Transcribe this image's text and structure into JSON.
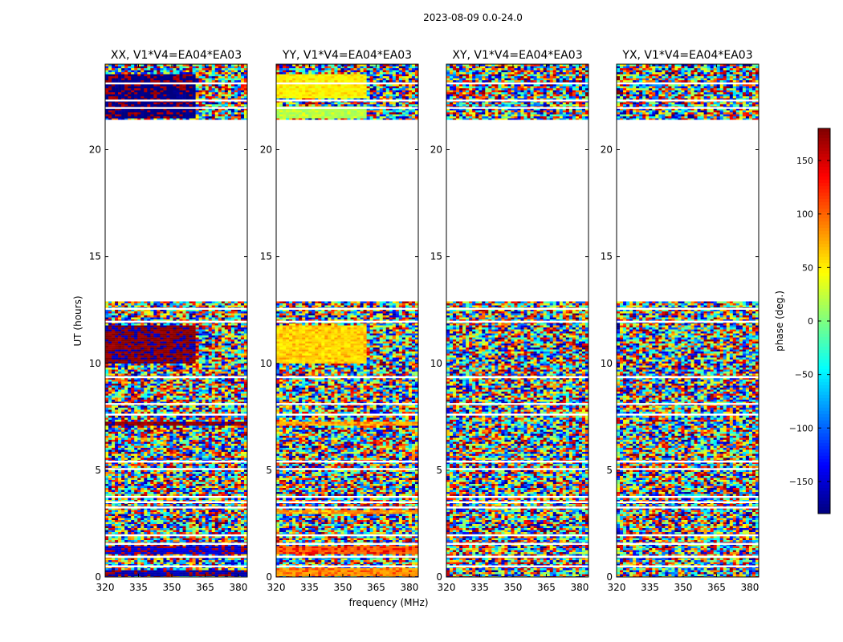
{
  "figure_title": "2023-08-09 0.0-24.0",
  "chart_data": {
    "type": "heatmap",
    "title": "2023-08-09 0.0-24.0",
    "xlabel": "frequency (MHz)",
    "ylabel": "UT (hours)",
    "xlim": [
      320,
      384
    ],
    "ylim": [
      0,
      24
    ],
    "x_ticks": [
      320,
      335,
      350,
      365,
      380
    ],
    "y_ticks": [
      0,
      5,
      10,
      15,
      20
    ],
    "colorbar": {
      "label": "phase (deg.)",
      "range": [
        -180,
        180
      ],
      "ticks": [
        150,
        100,
        50,
        0,
        -50,
        -100,
        -150
      ],
      "tick_labels": [
        "150",
        "100",
        "50",
        "0",
        "−50",
        "−100",
        "−150"
      ],
      "colormap": [
        "#00007f",
        "#0000ff",
        "#007fff",
        "#00ffff",
        "#7fff7f",
        "#ffff00",
        "#ff7f00",
        "#ff0000",
        "#7f0000"
      ]
    },
    "panels": [
      {
        "title": "XX, V1*V4=EA04*EA03",
        "coherent_blocks": [
          {
            "t_start": 10.0,
            "t_end": 11.8,
            "f_start": 320,
            "f_end": 361,
            "phase_deg": 175,
            "alt_phase_deg": -160
          },
          {
            "t_start": 21.5,
            "t_end": 23.5,
            "f_start": 320,
            "f_end": 361,
            "phase_deg": -178,
            "alt_phase_deg": 165
          },
          {
            "t_start": 0.0,
            "t_end": 0.3,
            "f_start": 320,
            "f_end": 384,
            "phase_deg": -160,
            "alt_phase_deg": 170
          },
          {
            "t_start": 1.1,
            "t_end": 1.4,
            "f_start": 320,
            "f_end": 384,
            "phase_deg": -150,
            "alt_phase_deg": 160
          },
          {
            "t_start": 7.1,
            "t_end": 7.3,
            "f_start": 320,
            "f_end": 384,
            "phase_deg": 170,
            "alt_phase_deg": -165
          }
        ]
      },
      {
        "title": "YY, V1*V4=EA04*EA03",
        "coherent_blocks": [
          {
            "t_start": 10.0,
            "t_end": 11.8,
            "f_start": 320,
            "f_end": 361,
            "phase_deg": 55,
            "alt_phase_deg": 75
          },
          {
            "t_start": 22.4,
            "t_end": 23.5,
            "f_start": 320,
            "f_end": 361,
            "phase_deg": 45,
            "alt_phase_deg": 60
          },
          {
            "t_start": 21.5,
            "t_end": 22.0,
            "f_start": 320,
            "f_end": 361,
            "phase_deg": 15,
            "alt_phase_deg": 30
          },
          {
            "t_start": 0.0,
            "t_end": 0.4,
            "f_start": 320,
            "f_end": 384,
            "phase_deg": 80,
            "alt_phase_deg": 110
          },
          {
            "t_start": 1.1,
            "t_end": 1.4,
            "f_start": 320,
            "f_end": 384,
            "phase_deg": 100,
            "alt_phase_deg": 140
          },
          {
            "t_start": 2.9,
            "t_end": 3.1,
            "f_start": 320,
            "f_end": 384,
            "phase_deg": 90,
            "alt_phase_deg": 60
          },
          {
            "t_start": 7.1,
            "t_end": 7.3,
            "f_start": 320,
            "f_end": 384,
            "phase_deg": 70,
            "alt_phase_deg": 100
          }
        ]
      },
      {
        "title": "XY, V1*V4=EA04*EA03",
        "coherent_blocks": []
      },
      {
        "title": "YX, V1*V4=EA04*EA03",
        "coherent_blocks": []
      }
    ],
    "data_time_ranges_hours": [
      [
        0.0,
        12.9
      ],
      [
        21.4,
        24.0
      ]
    ],
    "flagged_time_rows_hours": [
      0.5,
      0.95,
      1.55,
      1.95,
      3.25,
      3.5,
      3.75,
      5.05,
      5.4,
      7.6,
      8.1,
      9.35,
      11.95,
      12.55,
      21.95,
      22.3,
      23.1
    ]
  }
}
